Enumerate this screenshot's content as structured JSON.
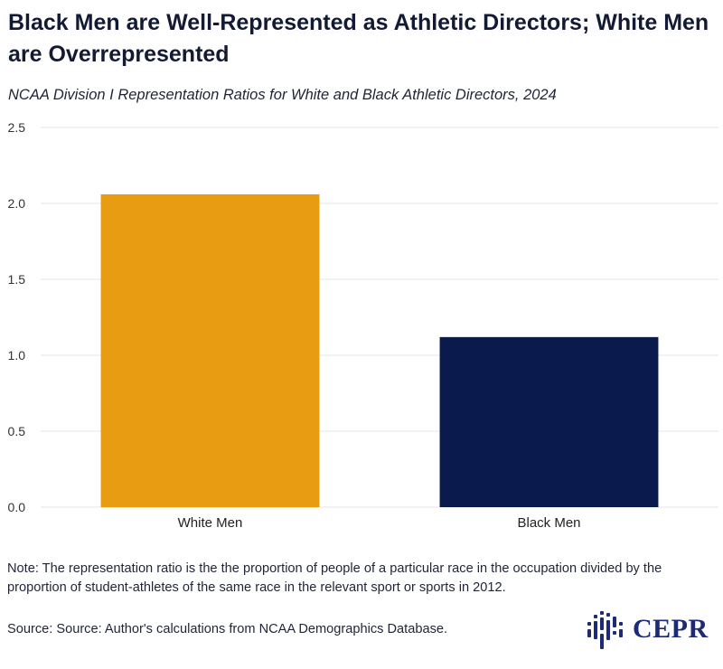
{
  "header": {
    "title": "Black Men are Well-Represented as Athletic Directors; White Men are Overrepresented",
    "subtitle": "NCAA Division I Representation Ratios for White and Black Athletic Directors, 2024"
  },
  "chart_data": {
    "type": "bar",
    "categories": [
      "White Men",
      "Black Men"
    ],
    "values": [
      2.06,
      1.12
    ],
    "colors": [
      "#E89C12",
      "#0B1A4D"
    ],
    "title": "",
    "xlabel": "",
    "ylabel": "",
    "ylim": [
      0,
      2.5
    ],
    "yticks": [
      "0.0",
      "0.5",
      "1.0",
      "1.5",
      "2.0",
      "2.5"
    ],
    "grid": true,
    "legend": "none"
  },
  "footer": {
    "note": "Note: The representation ratio is the the proportion of people of a particular race in the occupation divided by the proportion of student-athletes of the same race in the relevant sport or sports in 2012.",
    "source": "Source: Source: Author's calculations from NCAA Demographics Database.",
    "logo_text": "CEPR",
    "logo_color": "#1D2A78"
  }
}
